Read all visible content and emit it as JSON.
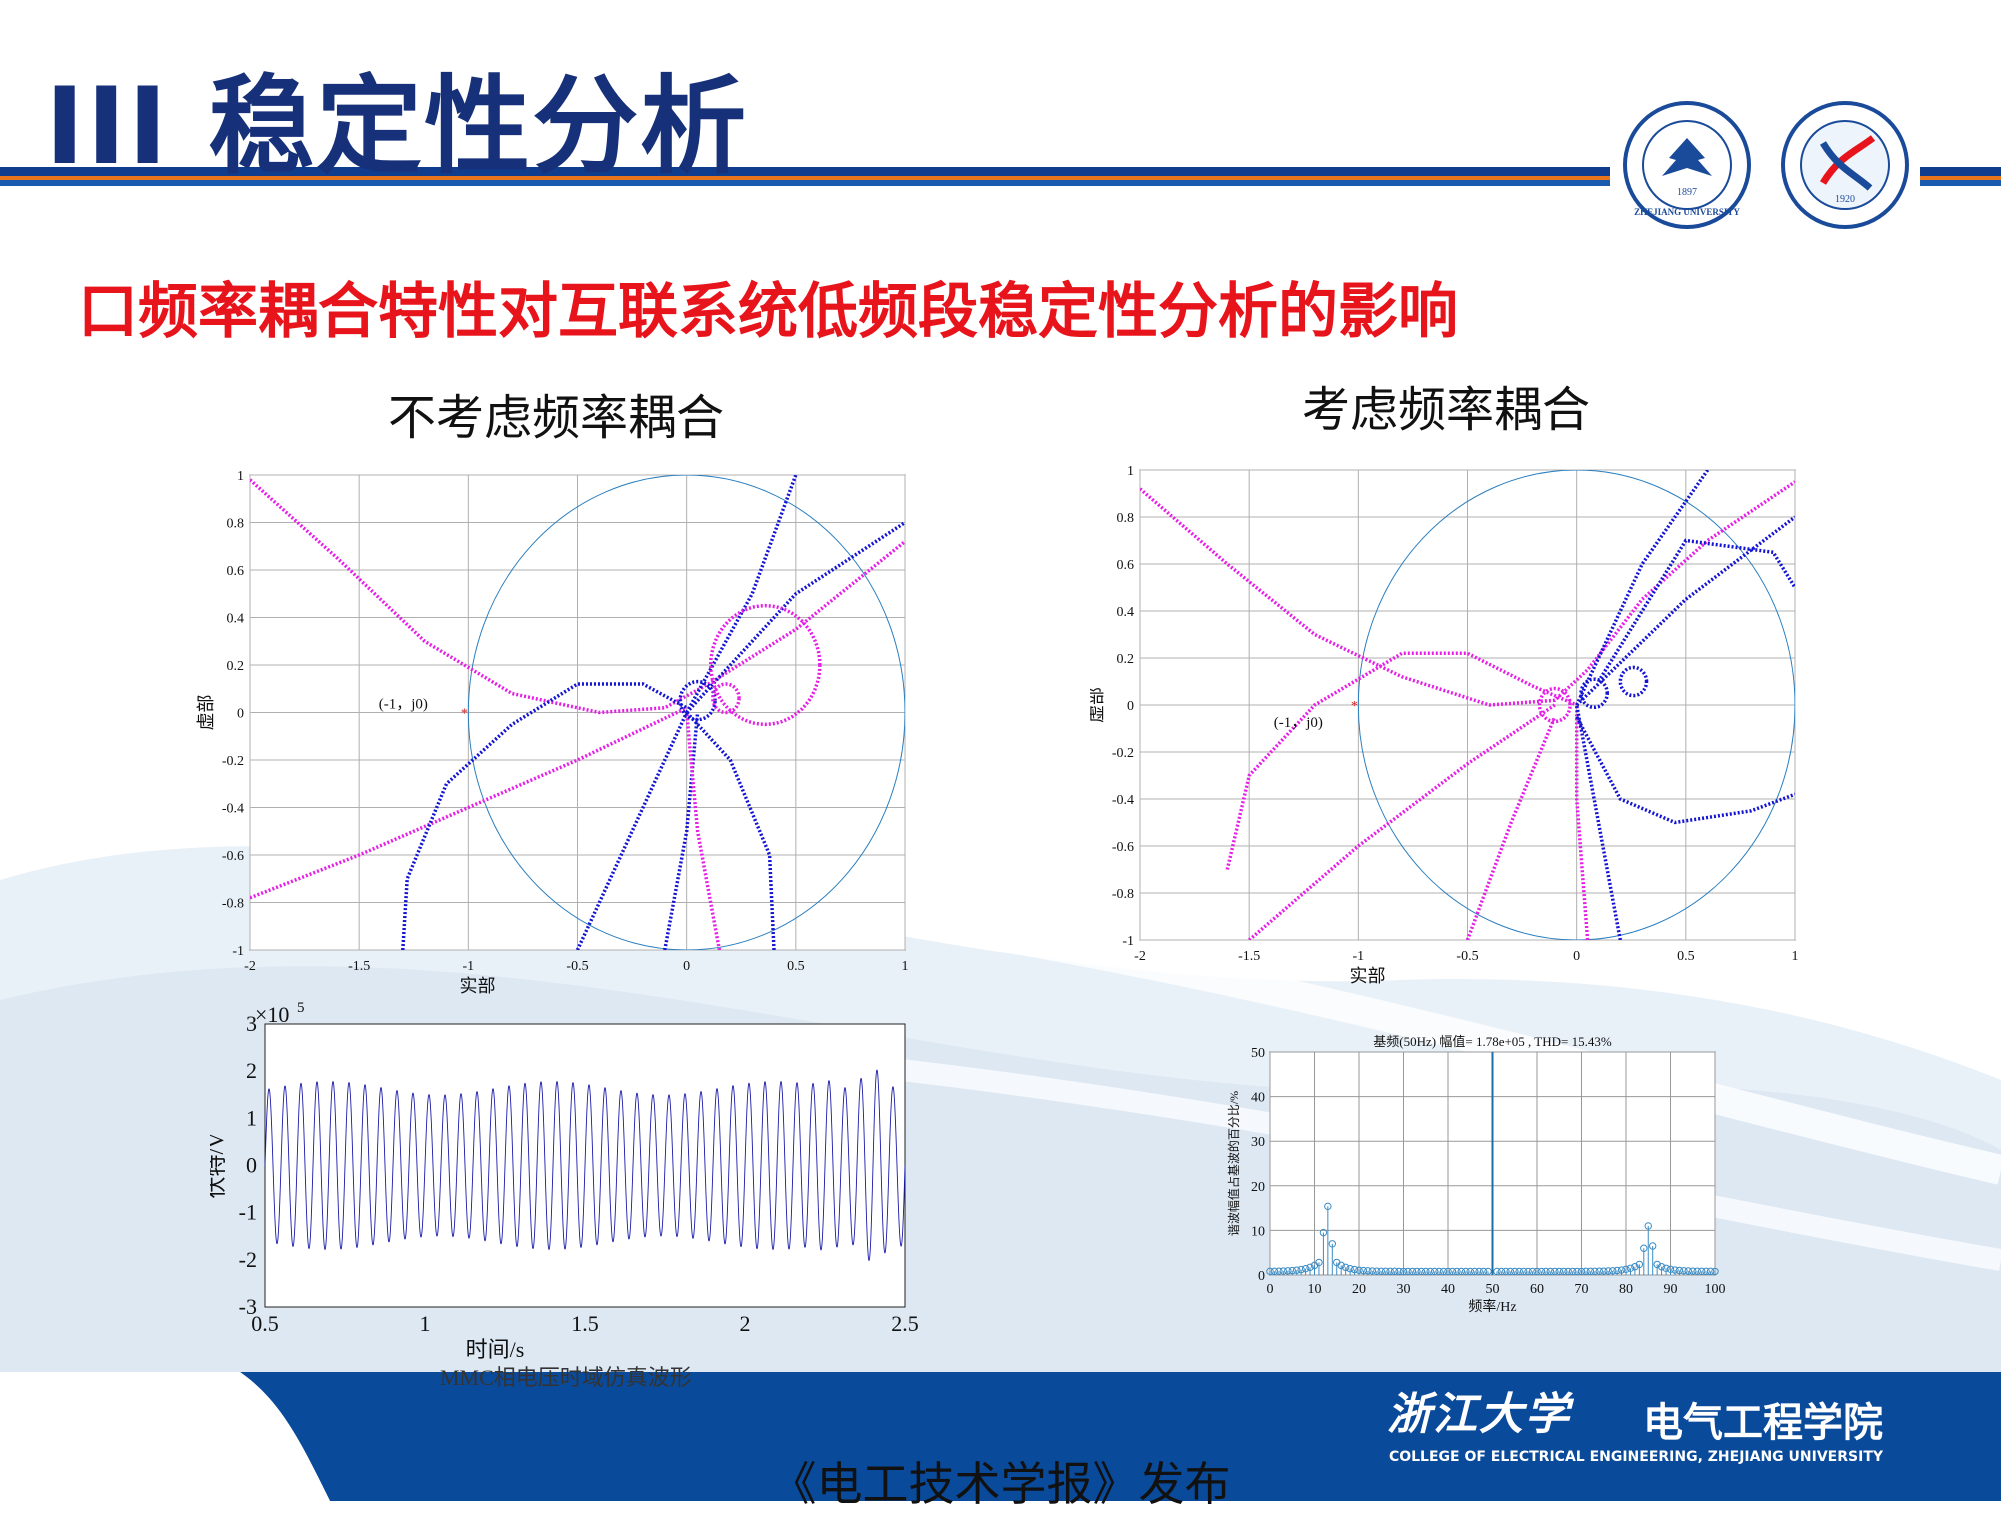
{
  "slide": {
    "title": "III 稳定性分析",
    "subtitle": "口频率耦合特性对互联系统低频段稳定性分析的影响",
    "left_heading": "不考虑频率耦合",
    "right_heading": "考虑频率耦合",
    "caption": "MMC相电压时域仿真波形",
    "footer_school": "浙江大学",
    "footer_college": "电气工程学院",
    "footer_college_en": "COLLEGE OF ELECTRICAL ENGINEERING, ZHEJIANG UNIVERSITY",
    "footer_publish": "《电工技术学报》发布",
    "logo1_text": "ZHEJIANG UNIVERSITY",
    "logo1_year": "1897",
    "logo2_year": "1920"
  },
  "colors": {
    "title": "#17307a",
    "subtitle": "#e8141c",
    "blue_curve": "#1414d2",
    "magenta_curve": "#e61ee6",
    "unit_circle": "#2b7fbf",
    "footer_band": "#0a4a9a"
  },
  "chart_data": [
    {
      "id": "nyquist-left",
      "type": "scatter",
      "xlabel": "实部",
      "ylabel": "虚部",
      "xlim": [
        -2,
        1
      ],
      "ylim": [
        -1,
        1
      ],
      "xticks": [
        "-2",
        "-1.5",
        "-1",
        "-0.5",
        "0",
        "0.5",
        "1"
      ],
      "yticks": [
        "1",
        "0.8",
        "0.6",
        "0.4",
        "0.2",
        "0",
        "-0.2",
        "-0.4",
        "-0.6",
        "-0.8",
        "-1"
      ],
      "annotation": "(-1，j0)",
      "grid": true,
      "unit_circle": true
    },
    {
      "id": "nyquist-right",
      "type": "scatter",
      "xlabel": "实部",
      "ylabel": "虚部",
      "xlim": [
        -2,
        1
      ],
      "ylim": [
        -1,
        1
      ],
      "xticks": [
        "-2",
        "-1.5",
        "-1",
        "-0.5",
        "0",
        "0.5",
        "1"
      ],
      "yticks": [
        "1",
        "0.8",
        "0.6",
        "0.4",
        "0.2",
        "0",
        "-0.2",
        "-0.4",
        "-0.6",
        "-0.8",
        "-1"
      ],
      "annotation": "(-1，j0)",
      "grid": true,
      "unit_circle": true
    },
    {
      "id": "voltage-waveform",
      "type": "line",
      "xlabel": "时间/s",
      "ylabel": "伏特/V",
      "exponent": "×10",
      "exponent_power": "5",
      "xlim": [
        0.5,
        2.5
      ],
      "ylim": [
        -3,
        3
      ],
      "xticks": [
        "0.5",
        "1",
        "1.5",
        "2",
        "2.5"
      ],
      "yticks": [
        "3",
        "2",
        "1",
        "0",
        "-1",
        "-2",
        "-3"
      ],
      "amplitude": 1.78,
      "grid": false
    },
    {
      "id": "harmonic-spectrum",
      "type": "bar",
      "title": "基频(50Hz) 幅值= 1.78e+05 , THD= 15.43%",
      "xlabel": "频率/Hz",
      "ylabel": "谐波幅值占基波的百分比/%",
      "xlim": [
        0,
        100
      ],
      "ylim": [
        0,
        50
      ],
      "xticks": [
        "0",
        "10",
        "20",
        "30",
        "40",
        "50",
        "60",
        "70",
        "80",
        "90",
        "100"
      ],
      "yticks": [
        "50",
        "40",
        "30",
        "20",
        "10",
        "0"
      ],
      "fundamental_hz": 50,
      "peaks": [
        {
          "x": 13,
          "y": 15.4
        },
        {
          "x": 12,
          "y": 9.5
        },
        {
          "x": 14,
          "y": 7
        },
        {
          "x": 85,
          "y": 11
        },
        {
          "x": 86,
          "y": 6.5
        },
        {
          "x": 84,
          "y": 6
        }
      ],
      "grid": true
    }
  ]
}
